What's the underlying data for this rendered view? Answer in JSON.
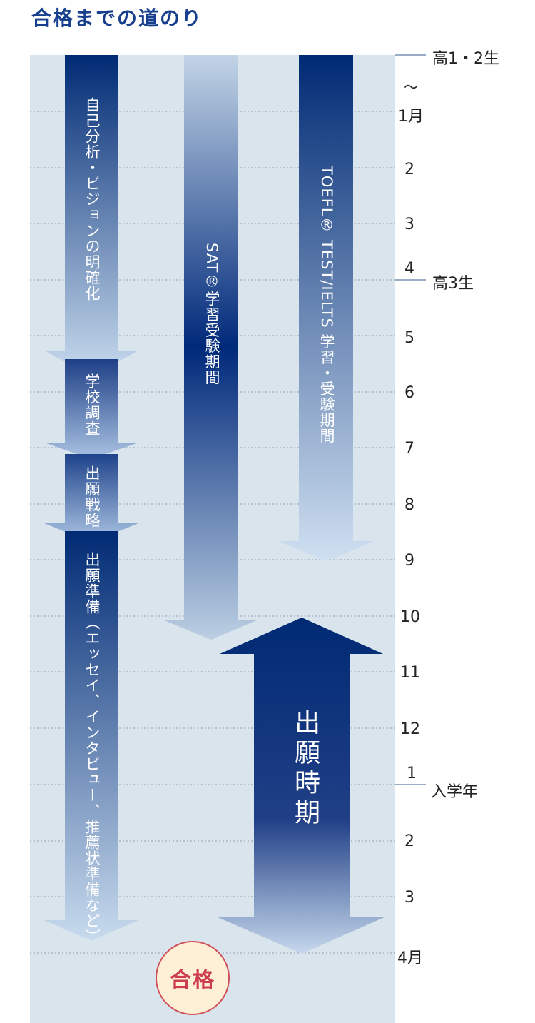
{
  "title": "合格までの道のり",
  "colors": {
    "panel": "#dae4ec",
    "navy": "#002a74",
    "light_arrow": "#c2d5e8",
    "pass_fill": "#fdf0d6",
    "pass_text": "#cc3d4f"
  },
  "grades": {
    "g12": "高1・2生",
    "g3": "高3生",
    "entry": "入学年"
  },
  "months": [
    "〜",
    "1月",
    "2",
    "3",
    "4",
    "5",
    "6",
    "7",
    "8",
    "9",
    "10",
    "11",
    "12",
    "1",
    "2",
    "3",
    "4月"
  ],
  "phases": {
    "self_analysis": "自己分析・ビジョンの明確化",
    "school_research": "学校調査",
    "application_strategy": "出願戦略",
    "application_prep": "出願準備（エッセイ、インタビュー、推薦状準備など）",
    "sat": "SAT®学習受験期間",
    "toefl": "TOEFL® TEST/IELTS 学習・受験期間",
    "application_period": "出願時期"
  },
  "pass_label": "合格"
}
